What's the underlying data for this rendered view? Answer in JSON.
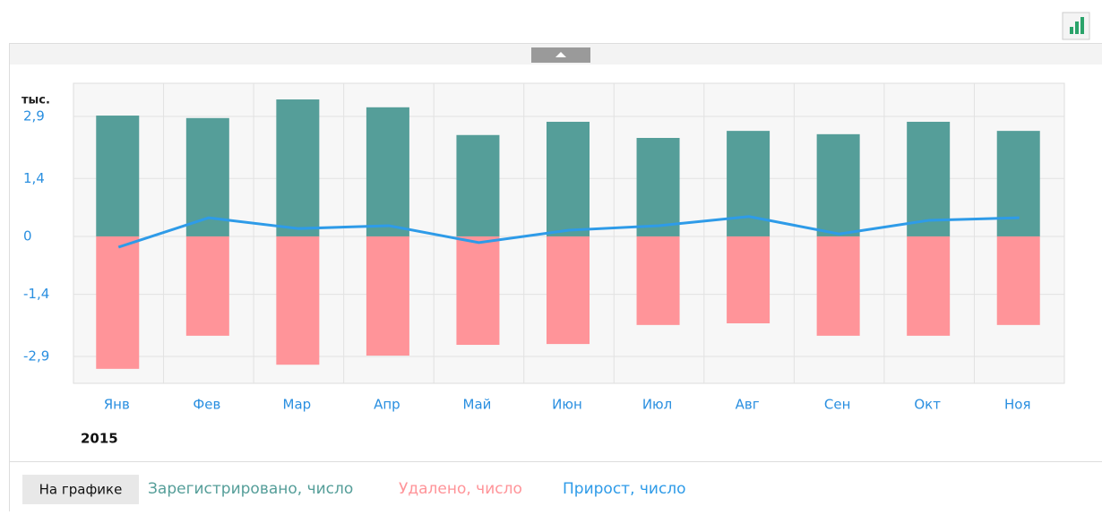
{
  "chart_data": {
    "type": "bar",
    "unit_label": "тыс.",
    "year_label": "2015",
    "legend_title": "На графике",
    "categories": [
      "Янв",
      "Фев",
      "Мар",
      "Апр",
      "Май",
      "Июн",
      "Июл",
      "Авг",
      "Сен",
      "Окт",
      "Ноя"
    ],
    "series": [
      {
        "name": "Зарегистрировано, число",
        "color": "#559e99",
        "type": "bar",
        "values": [
          2.92,
          2.86,
          3.31,
          3.12,
          2.45,
          2.77,
          2.38,
          2.55,
          2.47,
          2.77,
          2.55
        ]
      },
      {
        "name": "Удалено, число",
        "color": "#ff9499",
        "type": "bar",
        "values": [
          -3.2,
          -2.4,
          -3.1,
          -2.88,
          -2.62,
          -2.6,
          -2.14,
          -2.1,
          -2.4,
          -2.4,
          -2.14
        ]
      },
      {
        "name": "Прирост, число",
        "color": "#2e9be8",
        "type": "line",
        "values": [
          -0.26,
          0.45,
          0.19,
          0.26,
          -0.15,
          0.15,
          0.26,
          0.48,
          0.06,
          0.39,
          0.45
        ]
      }
    ],
    "ylim": [
      -3.55,
      3.7
    ],
    "yticks": [
      {
        "value": 2.9,
        "label": "2,9"
      },
      {
        "value": 1.4,
        "label": "1,4"
      },
      0,
      {
        "value": -1.4,
        "label": "-1,4"
      },
      {
        "value": -2.9,
        "label": "-2,9"
      }
    ],
    "grid": true
  }
}
